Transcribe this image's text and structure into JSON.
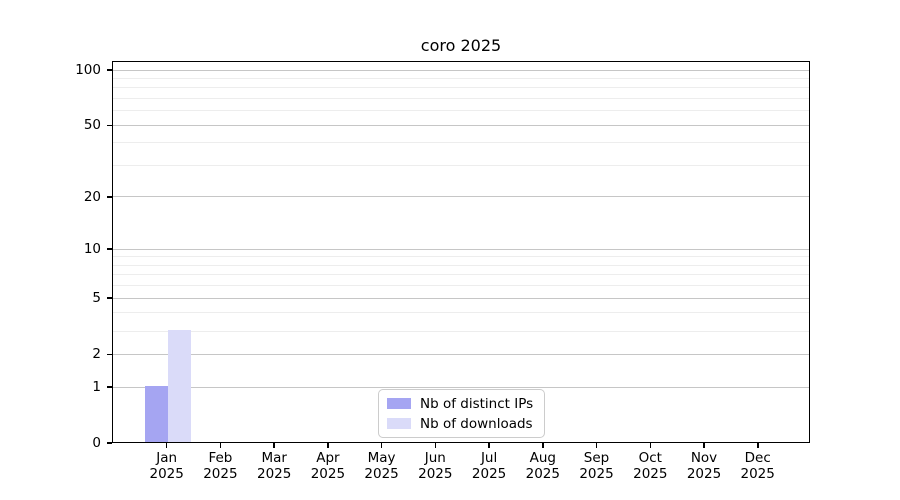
{
  "chart_data": {
    "type": "bar",
    "title": "coro 2025",
    "categories": [
      "Jan",
      "Feb",
      "Mar",
      "Apr",
      "May",
      "Jun",
      "Jul",
      "Aug",
      "Sep",
      "Oct",
      "Nov",
      "Dec"
    ],
    "category_year": "2025",
    "series": [
      {
        "name": "Nb of distinct IPs",
        "color": "#a5a5f2",
        "values": [
          1,
          0,
          0,
          0,
          0,
          0,
          0,
          0,
          0,
          0,
          0,
          0
        ]
      },
      {
        "name": "Nb of downloads",
        "color": "#dadbf9",
        "values": [
          3,
          0,
          0,
          0,
          0,
          0,
          0,
          0,
          0,
          0,
          0,
          0
        ]
      }
    ],
    "y_axis": {
      "scale": "log1p",
      "major_ticks": [
        0,
        1,
        2,
        5,
        10,
        20,
        50,
        100
      ],
      "minor_ticks": [
        3,
        4,
        6,
        7,
        8,
        9,
        30,
        40,
        60,
        70,
        80,
        90
      ],
      "max": 112
    },
    "x_axis": {
      "label": ""
    },
    "ylabel": "",
    "xlabel": "",
    "grid": true,
    "legend": {
      "position": "lower center",
      "entries": [
        "Nb of distinct IPs",
        "Nb of downloads"
      ]
    }
  },
  "colors": {
    "background": "#ffffff",
    "spine": "#000000",
    "major_grid": "#c6c6c6",
    "minor_grid": "#ededed",
    "bar_distinct_ips": "#a5a5f2",
    "bar_downloads": "#dadbf9",
    "legend_border": "#cccccc",
    "text": "#000000"
  }
}
